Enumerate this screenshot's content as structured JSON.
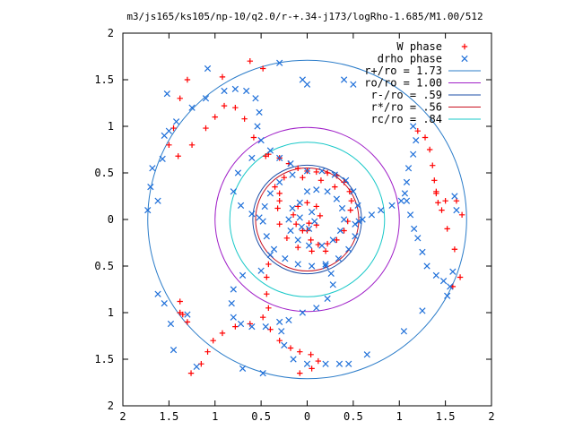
{
  "chart_data": {
    "type": "scatter",
    "title": "m3/js165/ks105/np-10/q2.0/r-+.34-j173/logRho-1.685/M1.00/512",
    "xlim": [
      -2,
      2
    ],
    "ylim": [
      -2,
      2
    ],
    "x_ticks": [
      {
        "value": -2,
        "label": "2"
      },
      {
        "value": -1.5,
        "label": "1.5"
      },
      {
        "value": -1,
        "label": "1"
      },
      {
        "value": -0.5,
        "label": "0.5"
      },
      {
        "value": 0,
        "label": "0"
      },
      {
        "value": 0.5,
        "label": "0.5"
      },
      {
        "value": 1,
        "label": "1"
      },
      {
        "value": 1.5,
        "label": "1.5"
      },
      {
        "value": 2,
        "label": "2"
      }
    ],
    "y_ticks": [
      {
        "value": 2,
        "label": "2"
      },
      {
        "value": 1.5,
        "label": "1.5"
      },
      {
        "value": 1,
        "label": "1"
      },
      {
        "value": 0.5,
        "label": "0.5"
      },
      {
        "value": 0,
        "label": "0"
      },
      {
        "value": -0.5,
        "label": "0.5"
      },
      {
        "value": -1,
        "label": "1"
      },
      {
        "value": -1.5,
        "label": "1.5"
      },
      {
        "value": -2,
        "label": "2"
      }
    ],
    "grid": false,
    "legend_position": "top-right",
    "legend": [
      {
        "label": "W phase",
        "kind": "marker",
        "marker": "plus",
        "color": "#ff0000"
      },
      {
        "label": "drho phase",
        "kind": "marker",
        "marker": "cross",
        "color": "#1e6fd9"
      },
      {
        "label": "r+/ro = 1.73",
        "kind": "line",
        "color": "#2b7cc9",
        "radius": 1.73
      },
      {
        "label": "ro/ro = 1.00",
        "kind": "line",
        "color": "#a020c8",
        "radius": 1.0
      },
      {
        "label": "r-/ro = .59",
        "kind": "line",
        "color": "#1e4fa8",
        "radius": 0.59
      },
      {
        "label": "r*/ro = .56",
        "kind": "line",
        "color": "#c8101e",
        "radius": 0.56
      },
      {
        "label": "rc/ro = .84",
        "kind": "line",
        "color": "#18c8c8",
        "radius": 0.84
      }
    ],
    "series": [
      {
        "name": "W phase",
        "marker": "plus",
        "color": "#ff0000",
        "points": [
          [
            -0.42,
            0.7
          ],
          [
            -0.3,
            0.66
          ],
          [
            -0.2,
            0.6
          ],
          [
            -0.1,
            0.55
          ],
          [
            0.0,
            0.52
          ],
          [
            0.1,
            0.51
          ],
          [
            0.22,
            0.5
          ],
          [
            0.32,
            0.47
          ],
          [
            0.4,
            0.4
          ],
          [
            0.46,
            0.3
          ],
          [
            0.48,
            0.2
          ],
          [
            0.47,
            0.1
          ],
          [
            0.44,
            -0.02
          ],
          [
            0.4,
            -0.12
          ],
          [
            0.32,
            -0.22
          ],
          [
            0.22,
            -0.26
          ],
          [
            0.12,
            -0.27
          ],
          [
            0.04,
            -0.22
          ],
          [
            0.0,
            -0.12
          ],
          [
            0.02,
            -0.04
          ],
          [
            -0.45,
            0.68
          ],
          [
            -0.58,
            0.88
          ],
          [
            -0.68,
            1.08
          ],
          [
            -0.78,
            1.2
          ],
          [
            -0.9,
            1.22
          ],
          [
            -1.0,
            1.1
          ],
          [
            -1.1,
            0.98
          ],
          [
            -1.25,
            0.8
          ],
          [
            -1.4,
            0.68
          ],
          [
            -1.5,
            0.8
          ],
          [
            -1.45,
            0.98
          ],
          [
            -1.38,
            1.3
          ],
          [
            -1.3,
            1.5
          ],
          [
            -0.92,
            1.53
          ],
          [
            -0.62,
            1.7
          ],
          [
            -0.48,
            1.62
          ],
          [
            1.2,
            0.95
          ],
          [
            1.28,
            0.88
          ],
          [
            1.33,
            0.75
          ],
          [
            1.36,
            0.58
          ],
          [
            1.38,
            0.42
          ],
          [
            1.4,
            0.28
          ],
          [
            1.42,
            0.18
          ],
          [
            1.46,
            0.1
          ],
          [
            1.52,
            -0.1
          ],
          [
            1.6,
            -0.32
          ],
          [
            1.66,
            -0.62
          ],
          [
            1.58,
            -0.72
          ],
          [
            1.4,
            0.3
          ],
          [
            1.5,
            0.2
          ],
          [
            1.62,
            0.2
          ],
          [
            1.68,
            0.05
          ],
          [
            -0.42,
            -0.48
          ],
          [
            -0.44,
            -0.62
          ],
          [
            -0.44,
            -0.8
          ],
          [
            -0.42,
            -0.95
          ],
          [
            -0.48,
            -1.05
          ],
          [
            -0.62,
            -1.12
          ],
          [
            -0.78,
            -1.15
          ],
          [
            -0.92,
            -1.22
          ],
          [
            -1.02,
            -1.3
          ],
          [
            -1.08,
            -1.42
          ],
          [
            -1.15,
            -1.55
          ],
          [
            -1.26,
            -1.65
          ],
          [
            -0.4,
            -1.18
          ],
          [
            -0.3,
            -1.3
          ],
          [
            -0.18,
            -1.38
          ],
          [
            -0.08,
            -1.42
          ],
          [
            0.04,
            -1.45
          ],
          [
            0.12,
            -1.52
          ],
          [
            0.05,
            -1.6
          ],
          [
            -0.08,
            -1.65
          ],
          [
            -1.38,
            -0.88
          ],
          [
            -1.35,
            -1.02
          ],
          [
            -1.3,
            -1.1
          ],
          [
            -1.38,
            -1.0
          ],
          [
            -0.05,
            -0.12
          ],
          [
            -0.12,
            -0.05
          ],
          [
            -0.15,
            0.05
          ],
          [
            -0.1,
            0.14
          ],
          [
            0.0,
            0.18
          ],
          [
            0.1,
            0.14
          ],
          [
            0.14,
            0.04
          ],
          [
            0.1,
            -0.06
          ],
          [
            -0.3,
            0.28
          ],
          [
            -0.32,
            0.12
          ],
          [
            -0.3,
            -0.05
          ],
          [
            -0.22,
            -0.2
          ],
          [
            -0.1,
            -0.3
          ],
          [
            0.05,
            -0.34
          ],
          [
            0.2,
            -0.34
          ],
          [
            -0.3,
            0.2
          ],
          [
            -0.35,
            0.35
          ],
          [
            -0.25,
            0.45
          ],
          [
            -0.05,
            0.45
          ],
          [
            0.15,
            0.42
          ],
          [
            0.3,
            0.35
          ]
        ]
      },
      {
        "name": "drho phase",
        "marker": "cross",
        "color": "#1e6fd9",
        "points": [
          [
            -1.55,
            0.9
          ],
          [
            -1.5,
            0.95
          ],
          [
            -1.42,
            1.05
          ],
          [
            -1.25,
            1.2
          ],
          [
            -1.1,
            1.3
          ],
          [
            -0.9,
            1.38
          ],
          [
            -0.78,
            1.4
          ],
          [
            -0.66,
            1.38
          ],
          [
            -0.56,
            1.3
          ],
          [
            -0.52,
            1.15
          ],
          [
            -0.54,
            1.0
          ],
          [
            -0.5,
            0.85
          ],
          [
            -0.4,
            0.74
          ],
          [
            -0.3,
            0.66
          ],
          [
            -0.18,
            0.6
          ],
          [
            -0.6,
            0.66
          ],
          [
            -0.75,
            0.5
          ],
          [
            -0.8,
            0.3
          ],
          [
            -0.72,
            0.15
          ],
          [
            -0.6,
            0.06
          ],
          [
            -0.52,
            0.02
          ],
          [
            -1.52,
            1.35
          ],
          [
            -1.7,
            0.35
          ],
          [
            -1.62,
            0.2
          ],
          [
            -1.68,
            0.55
          ],
          [
            -1.57,
            0.65
          ],
          [
            -1.73,
            0.1
          ],
          [
            -0.3,
            1.68
          ],
          [
            -0.05,
            1.5
          ],
          [
            0.0,
            1.45
          ],
          [
            0.4,
            1.5
          ],
          [
            0.5,
            1.45
          ],
          [
            -1.08,
            1.62
          ],
          [
            1.15,
            1.0
          ],
          [
            1.18,
            0.85
          ],
          [
            1.15,
            0.7
          ],
          [
            1.1,
            0.55
          ],
          [
            1.08,
            0.4
          ],
          [
            1.06,
            0.28
          ],
          [
            1.02,
            0.2
          ],
          [
            0.92,
            0.15
          ],
          [
            0.8,
            0.1
          ],
          [
            0.7,
            0.05
          ],
          [
            0.6,
            0.0
          ],
          [
            0.52,
            -0.05
          ],
          [
            1.08,
            0.2
          ],
          [
            1.12,
            0.05
          ],
          [
            1.16,
            -0.1
          ],
          [
            1.2,
            -0.2
          ],
          [
            1.25,
            -0.35
          ],
          [
            1.3,
            -0.5
          ],
          [
            1.4,
            -0.6
          ],
          [
            1.48,
            -0.66
          ],
          [
            1.55,
            -0.72
          ],
          [
            1.58,
            -0.56
          ],
          [
            1.62,
            0.1
          ],
          [
            1.6,
            0.25
          ],
          [
            1.52,
            -0.82
          ],
          [
            1.25,
            -0.98
          ],
          [
            1.05,
            -1.2
          ],
          [
            0.65,
            -1.45
          ],
          [
            -0.4,
            -0.38
          ],
          [
            -0.5,
            -0.55
          ],
          [
            -0.7,
            -0.6
          ],
          [
            -0.8,
            -0.75
          ],
          [
            -0.82,
            -0.9
          ],
          [
            -0.8,
            -1.05
          ],
          [
            -0.72,
            -1.12
          ],
          [
            -0.6,
            -1.15
          ],
          [
            -0.45,
            -1.15
          ],
          [
            -0.3,
            -1.1
          ],
          [
            -0.2,
            -1.08
          ],
          [
            -0.05,
            -1.0
          ],
          [
            0.1,
            -0.95
          ],
          [
            0.22,
            -0.85
          ],
          [
            0.28,
            -0.7
          ],
          [
            0.26,
            -0.58
          ],
          [
            0.2,
            -0.5
          ],
          [
            -0.28,
            -1.2
          ],
          [
            -0.25,
            -1.35
          ],
          [
            -0.15,
            -1.5
          ],
          [
            0.0,
            -1.55
          ],
          [
            0.2,
            -1.55
          ],
          [
            0.35,
            -1.55
          ],
          [
            0.45,
            -1.55
          ],
          [
            -1.62,
            -0.8
          ],
          [
            -1.55,
            -0.9
          ],
          [
            -1.48,
            -1.12
          ],
          [
            -1.3,
            -1.02
          ],
          [
            -1.45,
            -1.4
          ],
          [
            -1.2,
            -1.58
          ],
          [
            -0.7,
            -1.6
          ],
          [
            -0.48,
            -1.65
          ],
          [
            0.0,
            0.3
          ],
          [
            0.1,
            0.32
          ],
          [
            0.22,
            0.3
          ],
          [
            0.32,
            0.22
          ],
          [
            0.38,
            0.12
          ],
          [
            0.4,
            0.0
          ],
          [
            0.36,
            -0.12
          ],
          [
            0.28,
            -0.22
          ],
          [
            0.16,
            -0.28
          ],
          [
            0.02,
            -0.28
          ],
          [
            -0.1,
            -0.22
          ],
          [
            -0.18,
            -0.12
          ],
          [
            -0.2,
            0.0
          ],
          [
            -0.16,
            0.12
          ],
          [
            -0.08,
            0.18
          ],
          [
            0.42,
            0.42
          ],
          [
            0.5,
            0.3
          ],
          [
            0.55,
            0.15
          ],
          [
            0.56,
            -0.02
          ],
          [
            0.52,
            -0.18
          ],
          [
            0.45,
            -0.32
          ],
          [
            0.34,
            -0.42
          ],
          [
            0.2,
            -0.48
          ],
          [
            0.05,
            -0.5
          ],
          [
            -0.1,
            -0.48
          ],
          [
            -0.24,
            -0.42
          ],
          [
            -0.36,
            -0.32
          ],
          [
            -0.44,
            -0.18
          ],
          [
            -0.48,
            -0.02
          ],
          [
            -0.46,
            0.14
          ],
          [
            -0.4,
            0.28
          ],
          [
            -0.3,
            0.4
          ],
          [
            -0.16,
            0.48
          ],
          [
            0.0,
            0.52
          ],
          [
            0.16,
            0.52
          ],
          [
            0.3,
            0.48
          ],
          [
            0.05,
            0.08
          ],
          [
            0.08,
            -0.02
          ],
          [
            0.02,
            -0.1
          ],
          [
            -0.06,
            -0.08
          ],
          [
            -0.08,
            0.02
          ]
        ]
      }
    ]
  }
}
